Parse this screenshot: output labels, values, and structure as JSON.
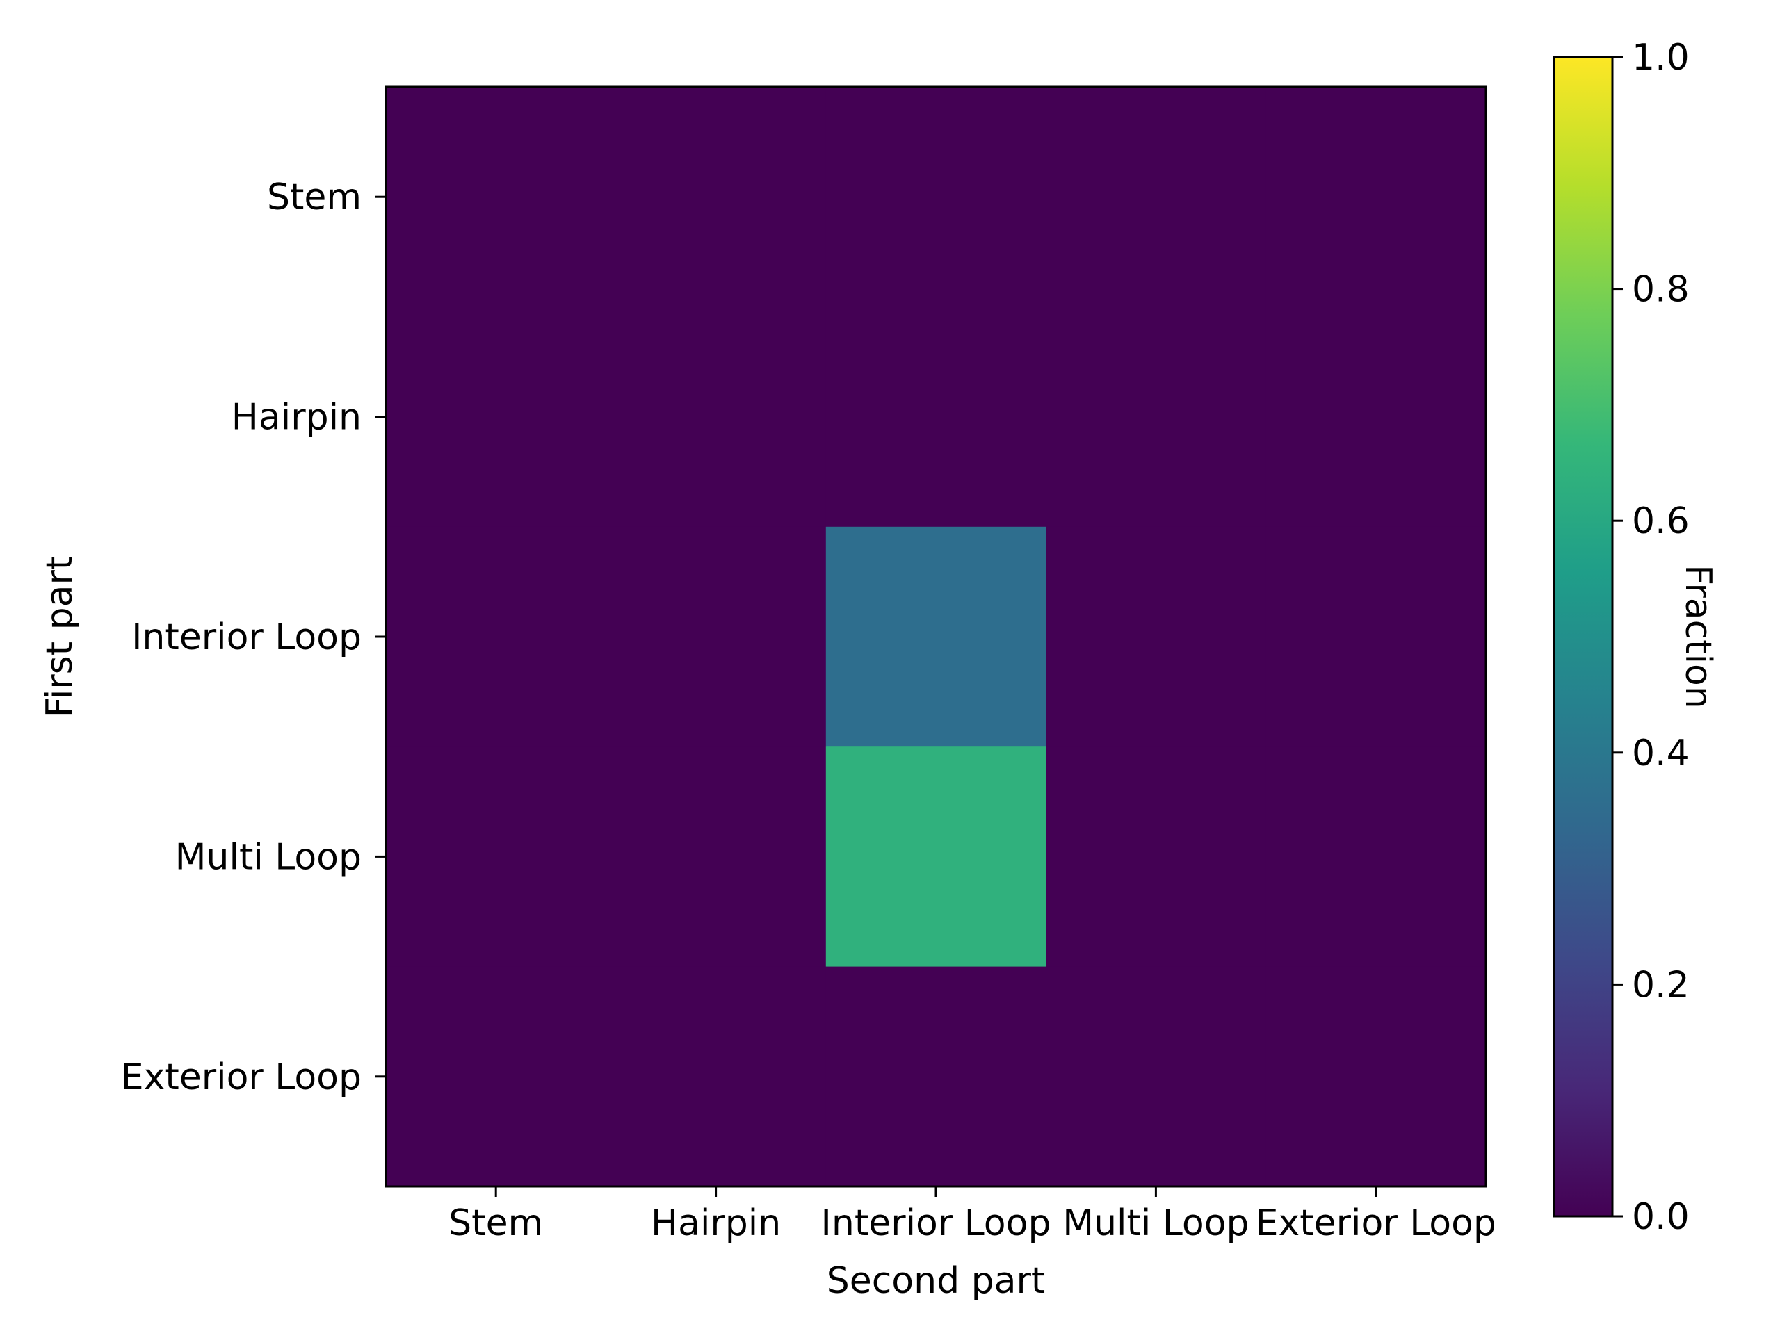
{
  "chart_data": {
    "type": "heatmap",
    "xlabel": "Second part",
    "ylabel": "First part",
    "x_categories": [
      "Stem",
      "Hairpin",
      "Interior Loop",
      "Multi Loop",
      "Exterior Loop"
    ],
    "y_categories": [
      "Stem",
      "Hairpin",
      "Interior Loop",
      "Multi Loop",
      "Exterior Loop"
    ],
    "values": [
      [
        0,
        0,
        0,
        0,
        0
      ],
      [
        0,
        0,
        0,
        0,
        0
      ],
      [
        0,
        0,
        0.36,
        0,
        0
      ],
      [
        0,
        0,
        0.64,
        0,
        0
      ],
      [
        0,
        0,
        0,
        0,
        0
      ]
    ],
    "colorbar": {
      "label": "Fraction",
      "range": [
        0,
        1
      ],
      "ticks": [
        "0.0",
        "0.2",
        "0.4",
        "0.6",
        "0.8",
        "1.0"
      ],
      "colormap": "viridis",
      "colormap_stops": [
        "#440154",
        "#482878",
        "#3e4989",
        "#31688e",
        "#26828e",
        "#1f9e89",
        "#35b779",
        "#6ece58",
        "#b5de2b",
        "#fde725"
      ]
    }
  }
}
